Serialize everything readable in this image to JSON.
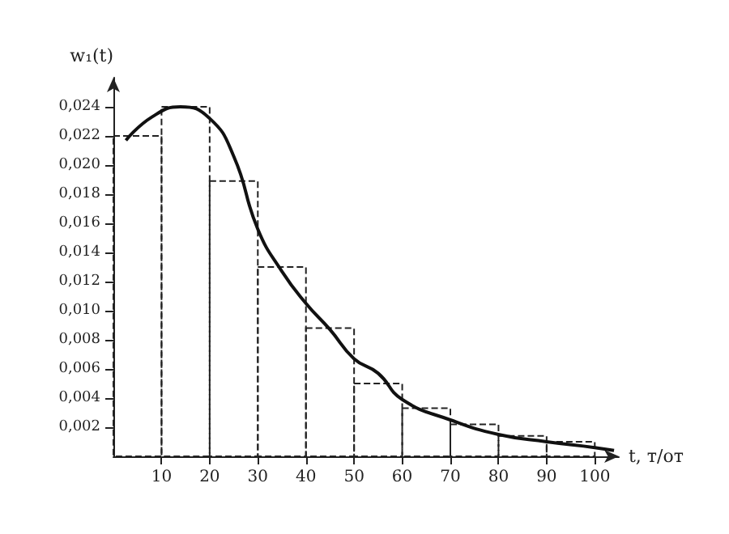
{
  "chart_data": {
    "type": "histogram",
    "xlabel": "t, т/от",
    "ylabel": "w₁(t)",
    "xlim": [
      0,
      105
    ],
    "xticks": [
      10,
      20,
      30,
      40,
      50,
      60,
      70,
      80,
      90,
      100
    ],
    "ylim": [
      0,
      0.026
    ],
    "yticks": [
      {
        "value": 0.002,
        "label": "0,002"
      },
      {
        "value": 0.004,
        "label": "0,004"
      },
      {
        "value": 0.006,
        "label": "0,006"
      },
      {
        "value": 0.008,
        "label": "0,008"
      },
      {
        "value": 0.01,
        "label": "0,010"
      },
      {
        "value": 0.012,
        "label": "0,012"
      },
      {
        "value": 0.014,
        "label": "0,014"
      },
      {
        "value": 0.016,
        "label": "0,016"
      },
      {
        "value": 0.018,
        "label": "0,018"
      },
      {
        "value": 0.02,
        "label": "0,020"
      },
      {
        "value": 0.022,
        "label": "0,022"
      },
      {
        "value": 0.024,
        "label": "0,024"
      }
    ],
    "grid": false,
    "series": [
      {
        "color": "#222222",
        "bins": [
          0,
          10,
          20,
          30,
          40,
          50,
          60,
          70,
          80,
          90,
          100
        ],
        "values": [
          0.022,
          0.024,
          0.0189,
          0.013,
          0.0088,
          0.005,
          0.0033,
          0.0022,
          0.0014,
          0.001
        ]
      },
      {
        "type": "line",
        "color": "#111111",
        "x": [
          2.6,
          8,
          13.9,
          20,
          25,
          30,
          35,
          40,
          45,
          50,
          55,
          60,
          70,
          80,
          90,
          100,
          104
        ],
        "values": [
          0.0217,
          0.0233,
          0.024,
          0.0232,
          0.0206,
          0.0156,
          0.0127,
          0.0105,
          0.0087,
          0.0067,
          0.0057,
          0.0039,
          0.0025,
          0.0015,
          0.001,
          0.0006,
          0.0004
        ]
      }
    ]
  }
}
